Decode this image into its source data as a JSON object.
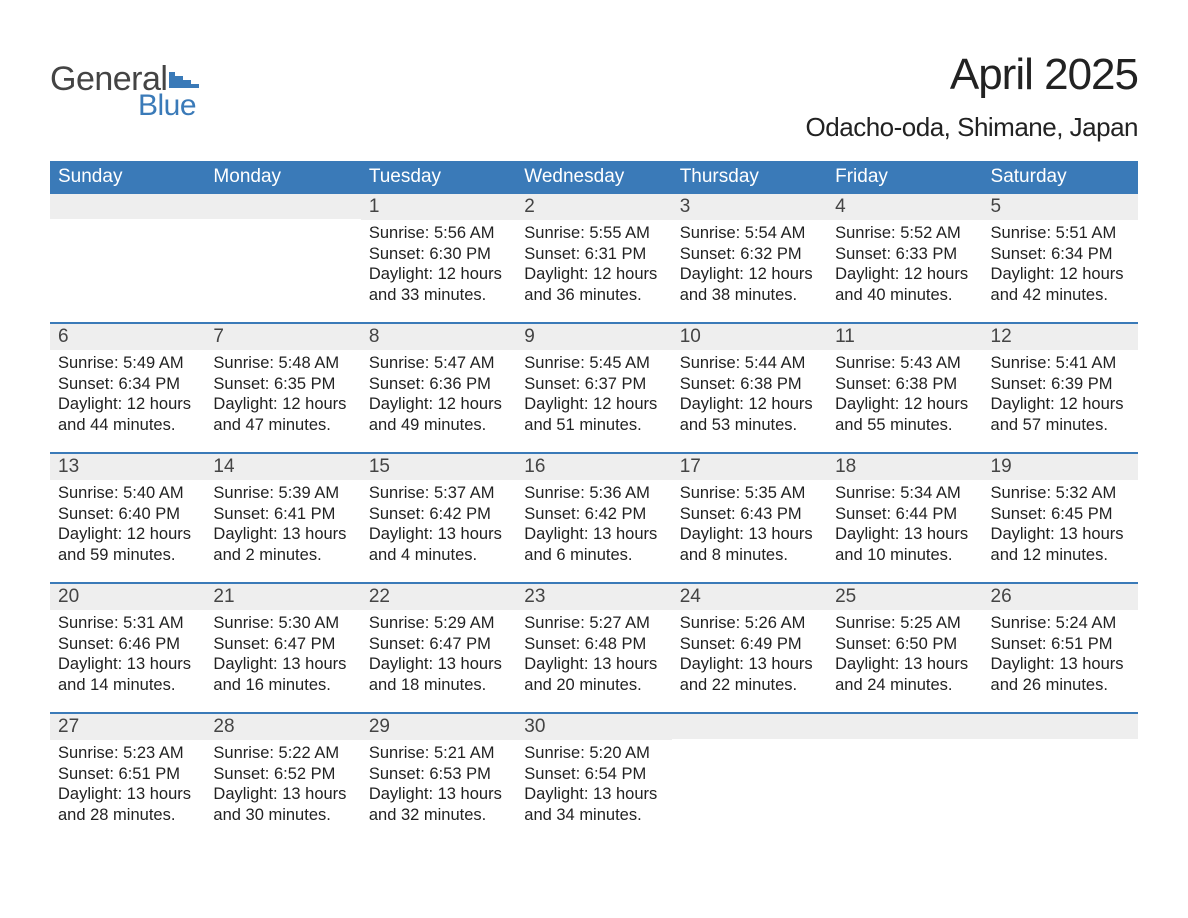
{
  "logo": {
    "text1": "General",
    "text2": "Blue"
  },
  "title": {
    "month": "April 2025",
    "location": "Odacho-oda, Shimane, Japan"
  },
  "colors": {
    "header_bg": "#3a7ab8",
    "header_text": "#ffffff",
    "strip_bg": "#eeeeee",
    "rule": "#3a7ab8",
    "body_text": "#222222",
    "logo_gray": "#444444",
    "logo_blue": "#3a7ab8",
    "page_bg": "#ffffff"
  },
  "day_names": [
    "Sunday",
    "Monday",
    "Tuesday",
    "Wednesday",
    "Thursday",
    "Friday",
    "Saturday"
  ],
  "weeks": [
    [
      {
        "n": "",
        "sr": "",
        "ss": "",
        "dl": ""
      },
      {
        "n": "",
        "sr": "",
        "ss": "",
        "dl": ""
      },
      {
        "n": "1",
        "sr": "5:56 AM",
        "ss": "6:30 PM",
        "dl": "12 hours and 33 minutes."
      },
      {
        "n": "2",
        "sr": "5:55 AM",
        "ss": "6:31 PM",
        "dl": "12 hours and 36 minutes."
      },
      {
        "n": "3",
        "sr": "5:54 AM",
        "ss": "6:32 PM",
        "dl": "12 hours and 38 minutes."
      },
      {
        "n": "4",
        "sr": "5:52 AM",
        "ss": "6:33 PM",
        "dl": "12 hours and 40 minutes."
      },
      {
        "n": "5",
        "sr": "5:51 AM",
        "ss": "6:34 PM",
        "dl": "12 hours and 42 minutes."
      }
    ],
    [
      {
        "n": "6",
        "sr": "5:49 AM",
        "ss": "6:34 PM",
        "dl": "12 hours and 44 minutes."
      },
      {
        "n": "7",
        "sr": "5:48 AM",
        "ss": "6:35 PM",
        "dl": "12 hours and 47 minutes."
      },
      {
        "n": "8",
        "sr": "5:47 AM",
        "ss": "6:36 PM",
        "dl": "12 hours and 49 minutes."
      },
      {
        "n": "9",
        "sr": "5:45 AM",
        "ss": "6:37 PM",
        "dl": "12 hours and 51 minutes."
      },
      {
        "n": "10",
        "sr": "5:44 AM",
        "ss": "6:38 PM",
        "dl": "12 hours and 53 minutes."
      },
      {
        "n": "11",
        "sr": "5:43 AM",
        "ss": "6:38 PM",
        "dl": "12 hours and 55 minutes."
      },
      {
        "n": "12",
        "sr": "5:41 AM",
        "ss": "6:39 PM",
        "dl": "12 hours and 57 minutes."
      }
    ],
    [
      {
        "n": "13",
        "sr": "5:40 AM",
        "ss": "6:40 PM",
        "dl": "12 hours and 59 minutes."
      },
      {
        "n": "14",
        "sr": "5:39 AM",
        "ss": "6:41 PM",
        "dl": "13 hours and 2 minutes."
      },
      {
        "n": "15",
        "sr": "5:37 AM",
        "ss": "6:42 PM",
        "dl": "13 hours and 4 minutes."
      },
      {
        "n": "16",
        "sr": "5:36 AM",
        "ss": "6:42 PM",
        "dl": "13 hours and 6 minutes."
      },
      {
        "n": "17",
        "sr": "5:35 AM",
        "ss": "6:43 PM",
        "dl": "13 hours and 8 minutes."
      },
      {
        "n": "18",
        "sr": "5:34 AM",
        "ss": "6:44 PM",
        "dl": "13 hours and 10 minutes."
      },
      {
        "n": "19",
        "sr": "5:32 AM",
        "ss": "6:45 PM",
        "dl": "13 hours and 12 minutes."
      }
    ],
    [
      {
        "n": "20",
        "sr": "5:31 AM",
        "ss": "6:46 PM",
        "dl": "13 hours and 14 minutes."
      },
      {
        "n": "21",
        "sr": "5:30 AM",
        "ss": "6:47 PM",
        "dl": "13 hours and 16 minutes."
      },
      {
        "n": "22",
        "sr": "5:29 AM",
        "ss": "6:47 PM",
        "dl": "13 hours and 18 minutes."
      },
      {
        "n": "23",
        "sr": "5:27 AM",
        "ss": "6:48 PM",
        "dl": "13 hours and 20 minutes."
      },
      {
        "n": "24",
        "sr": "5:26 AM",
        "ss": "6:49 PM",
        "dl": "13 hours and 22 minutes."
      },
      {
        "n": "25",
        "sr": "5:25 AM",
        "ss": "6:50 PM",
        "dl": "13 hours and 24 minutes."
      },
      {
        "n": "26",
        "sr": "5:24 AM",
        "ss": "6:51 PM",
        "dl": "13 hours and 26 minutes."
      }
    ],
    [
      {
        "n": "27",
        "sr": "5:23 AM",
        "ss": "6:51 PM",
        "dl": "13 hours and 28 minutes."
      },
      {
        "n": "28",
        "sr": "5:22 AM",
        "ss": "6:52 PM",
        "dl": "13 hours and 30 minutes."
      },
      {
        "n": "29",
        "sr": "5:21 AM",
        "ss": "6:53 PM",
        "dl": "13 hours and 32 minutes."
      },
      {
        "n": "30",
        "sr": "5:20 AM",
        "ss": "6:54 PM",
        "dl": "13 hours and 34 minutes."
      },
      {
        "n": "",
        "sr": "",
        "ss": "",
        "dl": ""
      },
      {
        "n": "",
        "sr": "",
        "ss": "",
        "dl": ""
      },
      {
        "n": "",
        "sr": "",
        "ss": "",
        "dl": ""
      }
    ]
  ],
  "labels": {
    "sunrise": "Sunrise: ",
    "sunset": "Sunset: ",
    "daylight": "Daylight: "
  }
}
